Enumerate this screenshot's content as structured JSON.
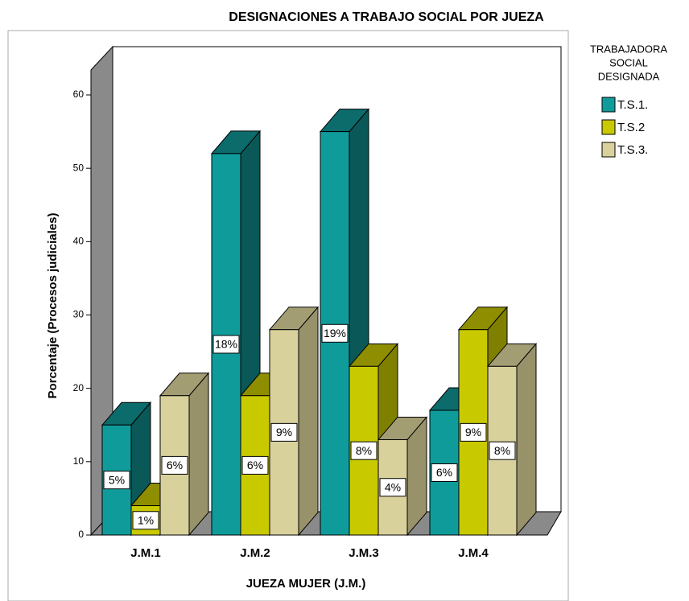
{
  "chart_data": {
    "type": "bar3d",
    "title": "DESIGNACIONES A TRABAJO SOCIAL POR JUEZA",
    "x_label": "JUEZA MUJER (J.M.)",
    "y_label": "Porcentaje (Procesos judiciales)",
    "legend_title": [
      "TRABAJADORA",
      "SOCIAL",
      "DESIGNADA"
    ],
    "legend_position": "right",
    "categories": [
      "J.M.1",
      "J.M.2",
      "J.M.3",
      "J.M.4"
    ],
    "series": [
      {
        "name": "T.S.1.",
        "color": "#109b9b",
        "side": "#0a5858",
        "top": "#0c6b6b",
        "values": [
          15,
          52,
          55,
          17
        ],
        "value_labels": [
          "5%",
          "18%",
          "19%",
          "6%"
        ]
      },
      {
        "name": "T.S.2",
        "color": "#c9c900",
        "side": "#7f7f00",
        "top": "#8e8e00",
        "values": [
          4,
          19,
          23,
          28
        ],
        "value_labels": [
          "1%",
          "6%",
          "8%",
          "9%"
        ]
      },
      {
        "name": "T.S.3.",
        "color": "#d9d19c",
        "side": "#98926a",
        "top": "#a39d74",
        "values": [
          19,
          28,
          13,
          23
        ],
        "value_labels": [
          "6%",
          "9%",
          "4%",
          "8%"
        ]
      }
    ],
    "ylim": [
      0,
      60
    ],
    "yticks": [
      0,
      10,
      20,
      30,
      40,
      50,
      60
    ]
  }
}
